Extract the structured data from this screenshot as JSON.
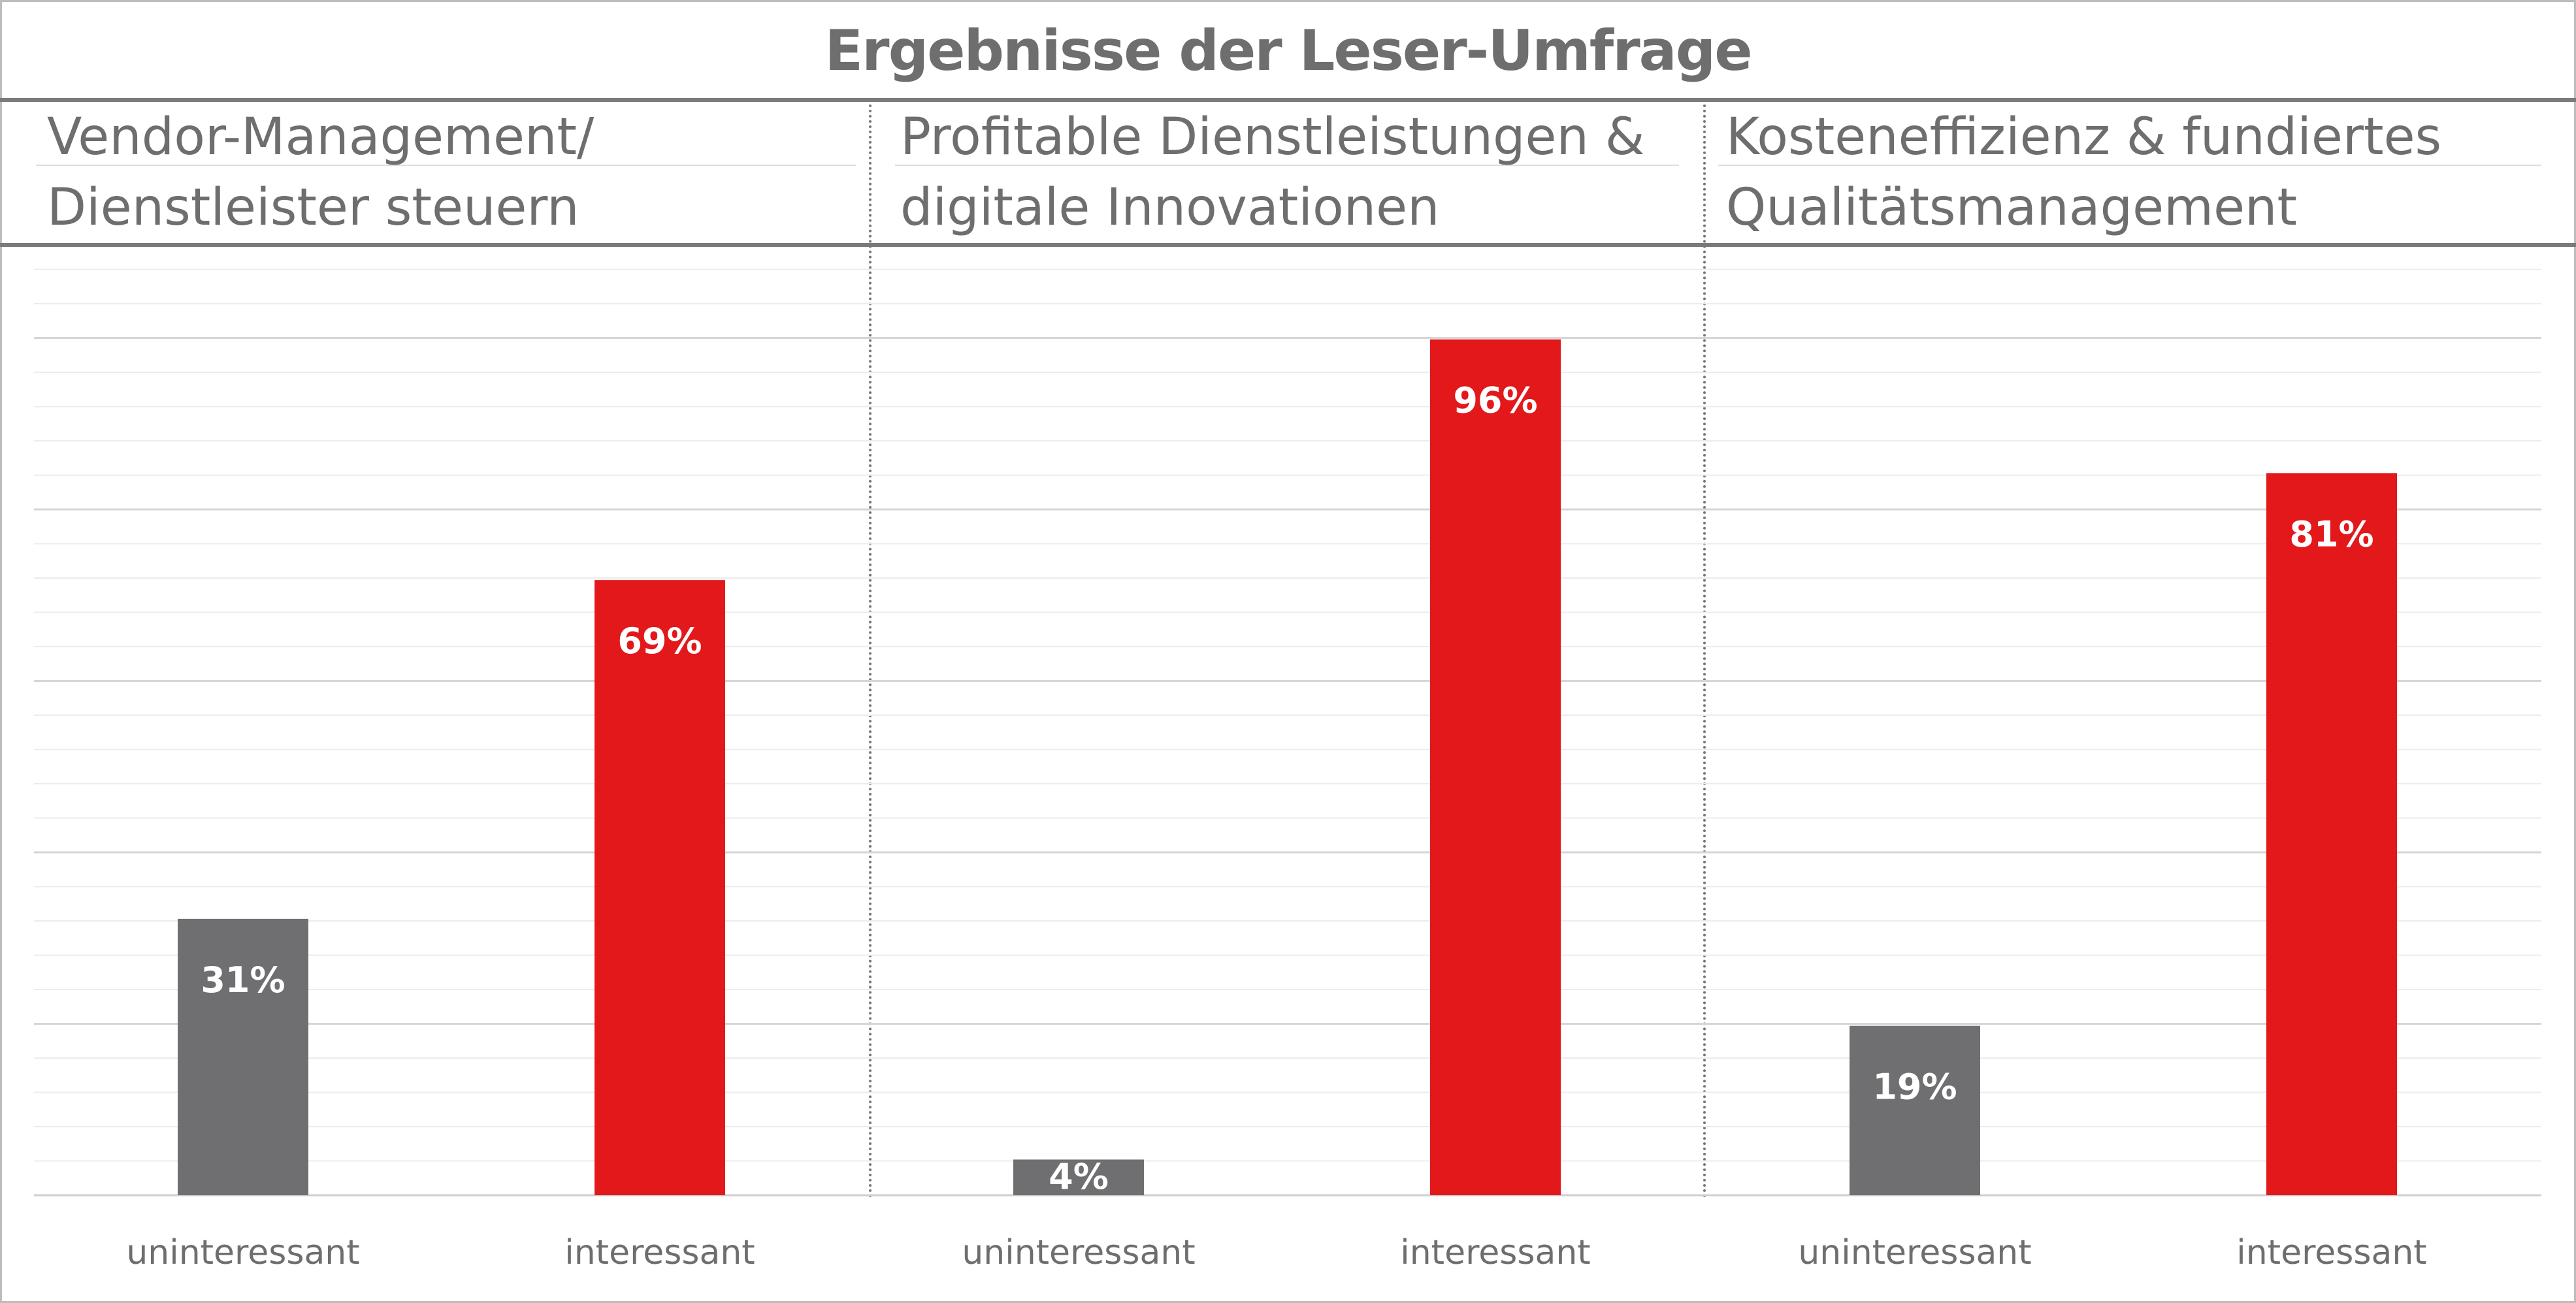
{
  "title": "Ergebnisse der Leser-Umfrage",
  "colors": {
    "uninteressant": "#6f6f71",
    "interessant": "#e3181b",
    "text": "#6e6e6e",
    "grid": "#e2e2e2"
  },
  "chart_data": [
    {
      "type": "bar",
      "title": "Vendor-Management/\nDienstleister steuern",
      "categories": [
        "uninteressant",
        "interessant"
      ],
      "values": [
        31,
        69
      ],
      "labels": [
        "31%",
        "69%"
      ],
      "unit": "%",
      "ylim": [
        0,
        100
      ],
      "grid": true
    },
    {
      "type": "bar",
      "title": "Profitable Dienstleistungen &\ndigitale Innovationen",
      "categories": [
        "uninteressant",
        "interessant"
      ],
      "values": [
        4,
        96
      ],
      "labels": [
        "4%",
        "96%"
      ],
      "unit": "%",
      "ylim": [
        0,
        100
      ],
      "grid": true
    },
    {
      "type": "bar",
      "title": "Kosteneffizienz & fundiertes\nQualitätsmanagement",
      "categories": [
        "uninteressant",
        "interessant"
      ],
      "values": [
        19,
        81
      ],
      "labels": [
        "19%",
        "81%"
      ],
      "unit": "%",
      "ylim": [
        0,
        100
      ],
      "grid": true
    }
  ]
}
